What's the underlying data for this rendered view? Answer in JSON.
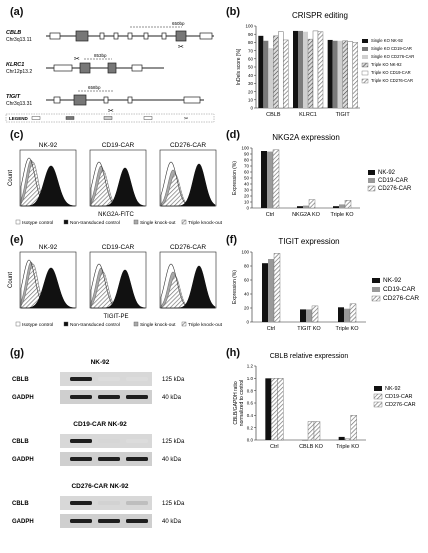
{
  "panel_labels": {
    "a": "(a)",
    "b": "(b)",
    "c": "(c)",
    "d": "(d)",
    "e": "(e)",
    "f": "(f)",
    "g": "(g)",
    "h": "(h)"
  },
  "gene_maps": [
    {
      "name": "CBLB",
      "chr": "Chr3q13.11",
      "dist": "650bp"
    },
    {
      "name": "KLRC1",
      "chr": "Chr12p13.2",
      "dist": "853bp"
    },
    {
      "name": "TIGIT",
      "chr": "Chr3q13.31",
      "dist": "658bp"
    }
  ],
  "gene_legend_label": "LEGEND",
  "flow_c": {
    "titles": [
      "NK-92",
      "CD19-CAR",
      "CD276-CAR"
    ],
    "xlabel": "NKG2A-FITC",
    "ylabel": "Count",
    "legend": [
      "Isotype control",
      "Non-transduced control",
      "Single knock-out",
      "Triple knock-out"
    ]
  },
  "flow_e": {
    "titles": [
      "NK-92",
      "CD19-CAR",
      "CD276-CAR"
    ],
    "xlabel": "TIGIT-PE",
    "ylabel": "Count",
    "legend": [
      "Isotype control",
      "Non-transduced control",
      "Single knock-out",
      "Triple knock-out"
    ]
  },
  "western": {
    "blocks": [
      {
        "title": "NK-92",
        "lanes": [
          "Ctrl",
          "Single KO",
          "Triple KO"
        ],
        "rows": [
          {
            "label": "CBLB",
            "kda": "125 kDa"
          },
          {
            "label": "GADPH",
            "kda": "40 kDa"
          }
        ]
      },
      {
        "title": "CD19-CAR NK-92",
        "lanes": [
          "Ctrl",
          "Single KO",
          "Triple KO"
        ],
        "rows": [
          {
            "label": "CBLB",
            "kda": "125 kDa"
          },
          {
            "label": "GADPH",
            "kda": "40 kDa"
          }
        ]
      },
      {
        "title": "CD276-CAR NK-92",
        "lanes": [
          "Ctrl",
          "Single KO",
          "Triple KO"
        ],
        "rows": [
          {
            "label": "CBLB",
            "kda": "125 kDa"
          },
          {
            "label": "GADPH",
            "kda": "40 kDa"
          }
        ]
      }
    ]
  },
  "chart_data": [
    {
      "panel": "b",
      "type": "bar",
      "title": "CRISPR editing",
      "ylabel": "InDels score [%]",
      "ylim": [
        0,
        100
      ],
      "yticks": [
        0,
        10,
        20,
        30,
        40,
        50,
        60,
        70,
        80,
        90,
        100
      ],
      "categories": [
        "CBLB",
        "KLRC1",
        "TIGIT"
      ],
      "series": [
        {
          "name": "Single KO NK-92",
          "color": "#111111",
          "pattern": "solid",
          "values": [
            88,
            94,
            83
          ]
        },
        {
          "name": "Single KO CD19-CAR",
          "color": "#7a7a7a",
          "pattern": "solid",
          "values": [
            82,
            94,
            82
          ]
        },
        {
          "name": "Single KO CD276-CAR",
          "color": "#cfcfcf",
          "pattern": "solid",
          "values": [
            73,
            93,
            82
          ]
        },
        {
          "name": "Triple KO NK-92",
          "color": "#555555",
          "pattern": "hatch",
          "values": [
            88,
            84,
            82
          ]
        },
        {
          "name": "Triple KO CD19-CAR",
          "color": "#ffffff",
          "pattern": "outline",
          "values": [
            93,
            94,
            81
          ]
        },
        {
          "name": "Triple KO CD276-CAR",
          "color": "#aaaaaa",
          "pattern": "hatch",
          "values": [
            83,
            93,
            80
          ]
        }
      ],
      "legend": "right"
    },
    {
      "panel": "d",
      "type": "bar",
      "title": "NKG2A expression",
      "ylabel": "Expression (%)",
      "ylim": [
        0,
        100
      ],
      "yticks": [
        0,
        10,
        20,
        30,
        40,
        50,
        60,
        70,
        80,
        90,
        100
      ],
      "categories": [
        "Ctrl",
        "NKG2A KO",
        "Triple KO"
      ],
      "series": [
        {
          "name": "NK-92",
          "color": "#111111",
          "pattern": "solid",
          "values": [
            95,
            3,
            3
          ]
        },
        {
          "name": "CD19-CAR",
          "color": "#999999",
          "pattern": "solid",
          "values": [
            94,
            4,
            6
          ]
        },
        {
          "name": "CD276-CAR",
          "color": "#bbbbbb",
          "pattern": "hatch",
          "values": [
            97,
            14,
            13
          ]
        }
      ],
      "legend": "right"
    },
    {
      "panel": "f",
      "type": "bar",
      "title": "TIGIT expression",
      "ylabel": "Expression (%)",
      "ylim": [
        0,
        100
      ],
      "yticks": [
        0,
        20,
        40,
        60,
        80,
        100
      ],
      "categories": [
        "Ctrl",
        "TIGIT KO",
        "Triple KO"
      ],
      "series": [
        {
          "name": "NK-92",
          "color": "#111111",
          "pattern": "solid",
          "values": [
            84,
            18,
            21
          ]
        },
        {
          "name": "CD19-CAR",
          "color": "#999999",
          "pattern": "solid",
          "values": [
            90,
            18,
            19
          ]
        },
        {
          "name": "CD276-CAR",
          "color": "#bbbbbb",
          "pattern": "hatch",
          "values": [
            98,
            23,
            26
          ]
        }
      ],
      "legend": "right"
    },
    {
      "panel": "h",
      "type": "bar",
      "title": "CBLB relative expression",
      "ylabel": "CBLB/GAPDH ratio normalized to control",
      "ylim": [
        0,
        1.2
      ],
      "yticks": [
        0.0,
        0.2,
        0.4,
        0.6,
        0.8,
        1.0,
        1.2
      ],
      "categories": [
        "Ctrl",
        "CBLB KO",
        "Triple KO"
      ],
      "series": [
        {
          "name": "NK-92",
          "color": "#111111",
          "pattern": "solid",
          "values": [
            1.0,
            0.0,
            0.05
          ]
        },
        {
          "name": "CD19-CAR",
          "color": "#999999",
          "pattern": "hatch",
          "values": [
            1.0,
            0.3,
            0.02
          ]
        },
        {
          "name": "CD276-CAR",
          "color": "#bbbbbb",
          "pattern": "hatch",
          "values": [
            1.0,
            0.3,
            0.4
          ]
        }
      ],
      "legend": "right"
    }
  ]
}
